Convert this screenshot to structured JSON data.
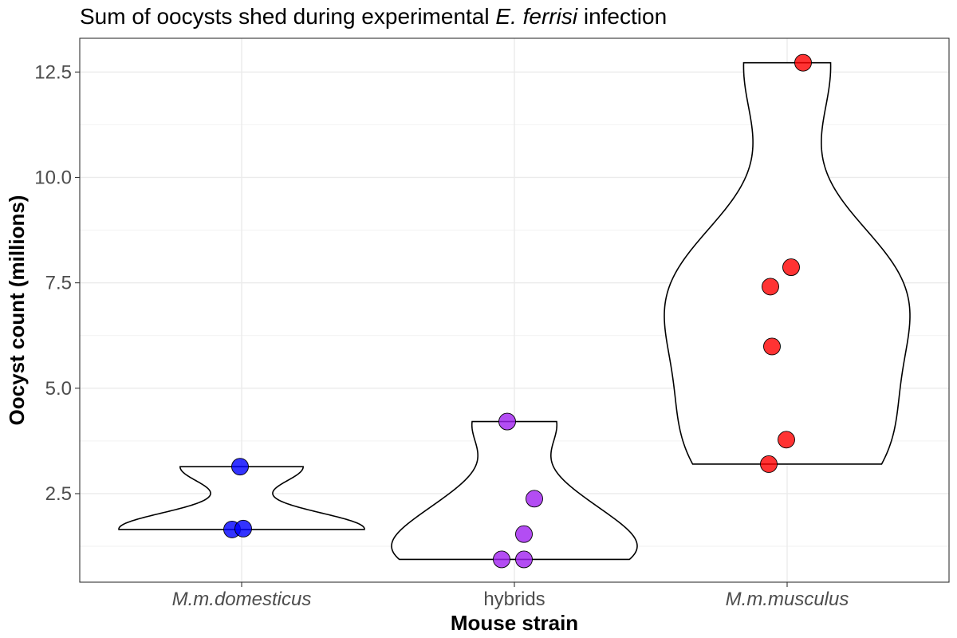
{
  "chart_data": {
    "type": "violin",
    "title_parts": [
      {
        "text": "Sum of oocysts shed during experimental ",
        "italic": false
      },
      {
        "text": "E. ferrisi",
        "italic": true
      },
      {
        "text": " infection",
        "italic": false
      }
    ],
    "xlabel": "Mouse strain",
    "ylabel": "Oocyst count (millions)",
    "categories": [
      {
        "label": "M.m.domesticus",
        "italic": true,
        "color": "#0000ff"
      },
      {
        "label": "hybrids",
        "italic": false,
        "color": "#a020f0"
      },
      {
        "label": "M.m.musculus",
        "italic": true,
        "color": "#ff0000"
      }
    ],
    "ylim": [
      0.4,
      13.3
    ],
    "yticks": [
      2.5,
      5.0,
      7.5,
      10.0,
      12.5
    ],
    "ytick_labels": [
      "2.5",
      "5.0",
      "7.5",
      "10.0",
      "12.5"
    ],
    "grid": true,
    "series": [
      {
        "category": "M.m.domesticus",
        "points": [
          3.14,
          1.65,
          1.67
        ]
      },
      {
        "category": "hybrids",
        "points": [
          4.21,
          2.38,
          1.54,
          0.94,
          0.94
        ]
      },
      {
        "category": "M.m.musculus",
        "points": [
          12.72,
          7.87,
          7.41,
          5.99,
          3.78,
          3.2
        ]
      }
    ]
  }
}
